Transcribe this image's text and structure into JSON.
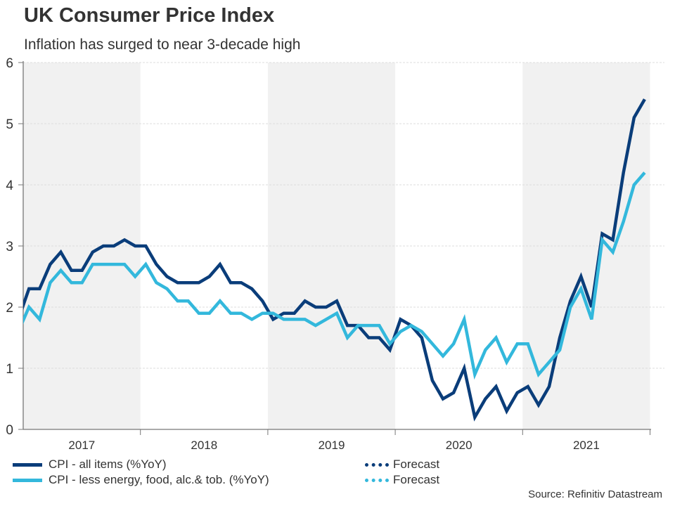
{
  "header": {
    "title": "UK Consumer Price Index",
    "subtitle": "Inflation has surged to near 3-decade high"
  },
  "colors": {
    "cpi_all": "#0a3d7a",
    "cpi_core": "#33b8dc",
    "band": "#f1f1f1",
    "grid": "#dddddd",
    "axis": "#777777",
    "text": "#333333"
  },
  "legend": [
    {
      "label": "CPI - all items (%YoY)",
      "style": "solid",
      "series": "cpi_all"
    },
    {
      "label": "CPI - less energy, food, alc.& tob. (%YoY)",
      "style": "solid",
      "series": "cpi_core"
    },
    {
      "label": "Forecast",
      "style": "dotted",
      "series": "cpi_all"
    },
    {
      "label": "Forecast",
      "style": "dotted",
      "series": "cpi_core"
    }
  ],
  "source": "Source: Refinitiv Datastream",
  "chart_data": {
    "type": "line",
    "title": "UK Consumer Price Index",
    "subtitle": "Inflation has surged to near 3-decade high",
    "xlabel": "",
    "ylabel": "",
    "x_unit": "month",
    "x_start": "2017-01",
    "x_end": "2021-12",
    "xlim_months": [
      0.46,
      59.6
    ],
    "ylim": [
      0,
      6
    ],
    "yticks": [
      0,
      1,
      2,
      3,
      4,
      5,
      6
    ],
    "year_labels": [
      "2017",
      "2018",
      "2019",
      "2020",
      "2021"
    ],
    "shaded_years": [
      "2017",
      "2019",
      "2021"
    ],
    "grid": true,
    "legend_position": "bottom",
    "series": [
      {
        "name": "CPI - all items (%YoY)",
        "key": "cpi_all",
        "values": [
          1.8,
          2.3,
          2.3,
          2.7,
          2.9,
          2.6,
          2.6,
          2.9,
          3.0,
          3.0,
          3.1,
          3.0,
          3.0,
          2.7,
          2.5,
          2.4,
          2.4,
          2.4,
          2.5,
          2.7,
          2.4,
          2.4,
          2.3,
          2.1,
          1.8,
          1.9,
          1.9,
          2.1,
          2.0,
          2.0,
          2.1,
          1.7,
          1.7,
          1.5,
          1.5,
          1.3,
          1.8,
          1.7,
          1.5,
          0.8,
          0.5,
          0.6,
          1.0,
          0.2,
          0.5,
          0.7,
          0.3,
          0.6,
          0.7,
          0.4,
          0.7,
          1.5,
          2.1,
          2.5,
          2.0,
          3.2,
          3.1,
          4.2,
          5.1,
          5.4
        ]
      },
      {
        "name": "CPI - less energy, food, alc.& tob. (%YoY)",
        "key": "cpi_core",
        "values": [
          1.6,
          2.0,
          1.8,
          2.4,
          2.6,
          2.4,
          2.4,
          2.7,
          2.7,
          2.7,
          2.7,
          2.5,
          2.7,
          2.4,
          2.3,
          2.1,
          2.1,
          1.9,
          1.9,
          2.1,
          1.9,
          1.9,
          1.8,
          1.9,
          1.9,
          1.8,
          1.8,
          1.8,
          1.7,
          1.8,
          1.9,
          1.5,
          1.7,
          1.7,
          1.7,
          1.4,
          1.6,
          1.7,
          1.6,
          1.4,
          1.2,
          1.4,
          1.8,
          0.9,
          1.3,
          1.5,
          1.1,
          1.4,
          1.4,
          0.9,
          1.1,
          1.3,
          2.0,
          2.3,
          1.8,
          3.1,
          2.9,
          3.4,
          4.0,
          4.2
        ]
      }
    ]
  }
}
